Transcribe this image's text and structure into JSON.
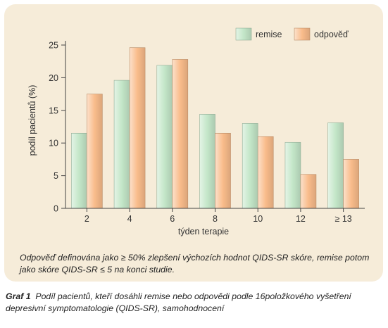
{
  "chart_data": {
    "type": "bar",
    "xlabel": "týden terapie",
    "ylabel": "podíl pacientů (%)",
    "categories": [
      "2",
      "4",
      "6",
      "8",
      "10",
      "12",
      "≥ 13"
    ],
    "ylim": [
      0,
      25
    ],
    "yticks": [
      0,
      5,
      10,
      15,
      20,
      25
    ],
    "grid": false,
    "legend_position": "top-right",
    "series": [
      {
        "name": "remise",
        "color": "#c3e6c8",
        "values": [
          11.5,
          19.6,
          21.9,
          14.4,
          13.0,
          10.1,
          13.1
        ]
      },
      {
        "name": "odpověď",
        "color": "#f9bc8b",
        "values": [
          17.5,
          24.6,
          22.8,
          11.5,
          11.0,
          5.2,
          7.5
        ]
      }
    ]
  },
  "note": "Odpověď definována jako ≥ 50% zlepšení výchozích hodnot QIDS-SR skóre, remise potom jako skóre QIDS-SR  ≤ 5 na konci studie.",
  "caption": {
    "label": "Graf 1",
    "text": "Podíl pacientů, kteří dosáhli remise nebo odpovědi podle 16položkového vyšetření depresivní symptomatologie (QIDS-SR), samohodnocení"
  }
}
